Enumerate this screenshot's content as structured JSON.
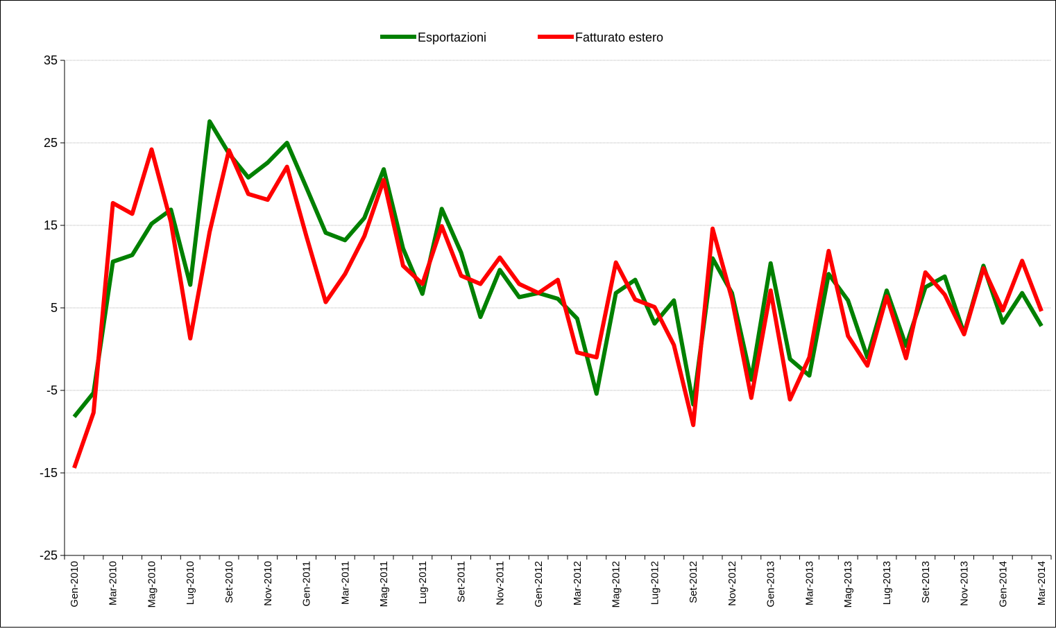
{
  "chart_data": {
    "type": "line",
    "categories": [
      "Gen-2010",
      null,
      "Mar-2010",
      null,
      "Mag-2010",
      null,
      "Lug-2010",
      null,
      "Set-2010",
      null,
      "Nov-2010",
      null,
      "Gen-2011",
      null,
      "Mar-2011",
      null,
      "Mag-2011",
      null,
      "Lug-2011",
      null,
      "Set-2011",
      null,
      "Nov-2011",
      null,
      "Gen-2012",
      null,
      "Mar-2012",
      null,
      "Mag-2012",
      null,
      "Lug-2012",
      null,
      "Set-2012",
      null,
      "Nov-2012",
      null,
      "Gen-2013",
      null,
      "Mar-2013",
      null,
      "Mag-2013",
      null,
      "Lug-2013",
      null,
      "Set-2013",
      null,
      "Nov-2013",
      null,
      "Gen-2014",
      null,
      "Mar-2014"
    ],
    "series": [
      {
        "name": "Esportazioni",
        "color": "#008000",
        "values": [
          -8.2,
          -5.3,
          10.6,
          11.4,
          15.2,
          16.9,
          7.8,
          27.6,
          23.7,
          20.8,
          22.6,
          25.0,
          19.6,
          14.1,
          13.2,
          15.9,
          21.8,
          12.2,
          6.7,
          17.0,
          11.7,
          3.9,
          9.6,
          6.3,
          6.8,
          6.1,
          3.7,
          -5.4,
          6.8,
          8.4,
          3.1,
          5.9,
          -6.7,
          11.0,
          6.8,
          -3.7,
          10.4,
          -1.2,
          -3.2,
          9.1,
          5.9,
          -1.0,
          7.1,
          0.4,
          7.5,
          8.8,
          1.9,
          10.1,
          3.2,
          6.8,
          2.8
        ]
      },
      {
        "name": "Fatturato estero",
        "color": "#ff0000",
        "values": [
          -14.4,
          -7.7,
          17.7,
          16.4,
          24.2,
          15.4,
          1.3,
          14.2,
          24.1,
          18.8,
          18.1,
          22.1,
          13.7,
          5.7,
          9.1,
          13.7,
          20.5,
          10.1,
          7.9,
          14.9,
          8.9,
          7.9,
          11.1,
          7.9,
          6.8,
          8.4,
          -0.4,
          -1.0,
          10.5,
          6.0,
          5.1,
          0.5,
          -9.2,
          14.6,
          6.1,
          -5.9,
          7.1,
          -6.1,
          -1.0,
          11.9,
          1.6,
          -2.0,
          6.4,
          -1.1,
          9.3,
          6.6,
          1.8,
          9.8,
          4.7,
          10.7,
          4.6
        ]
      }
    ],
    "ylim": [
      -25,
      35
    ],
    "yticks": [
      -25,
      -15,
      -5,
      5,
      15,
      25,
      35
    ],
    "grid": true,
    "legend": "top"
  }
}
